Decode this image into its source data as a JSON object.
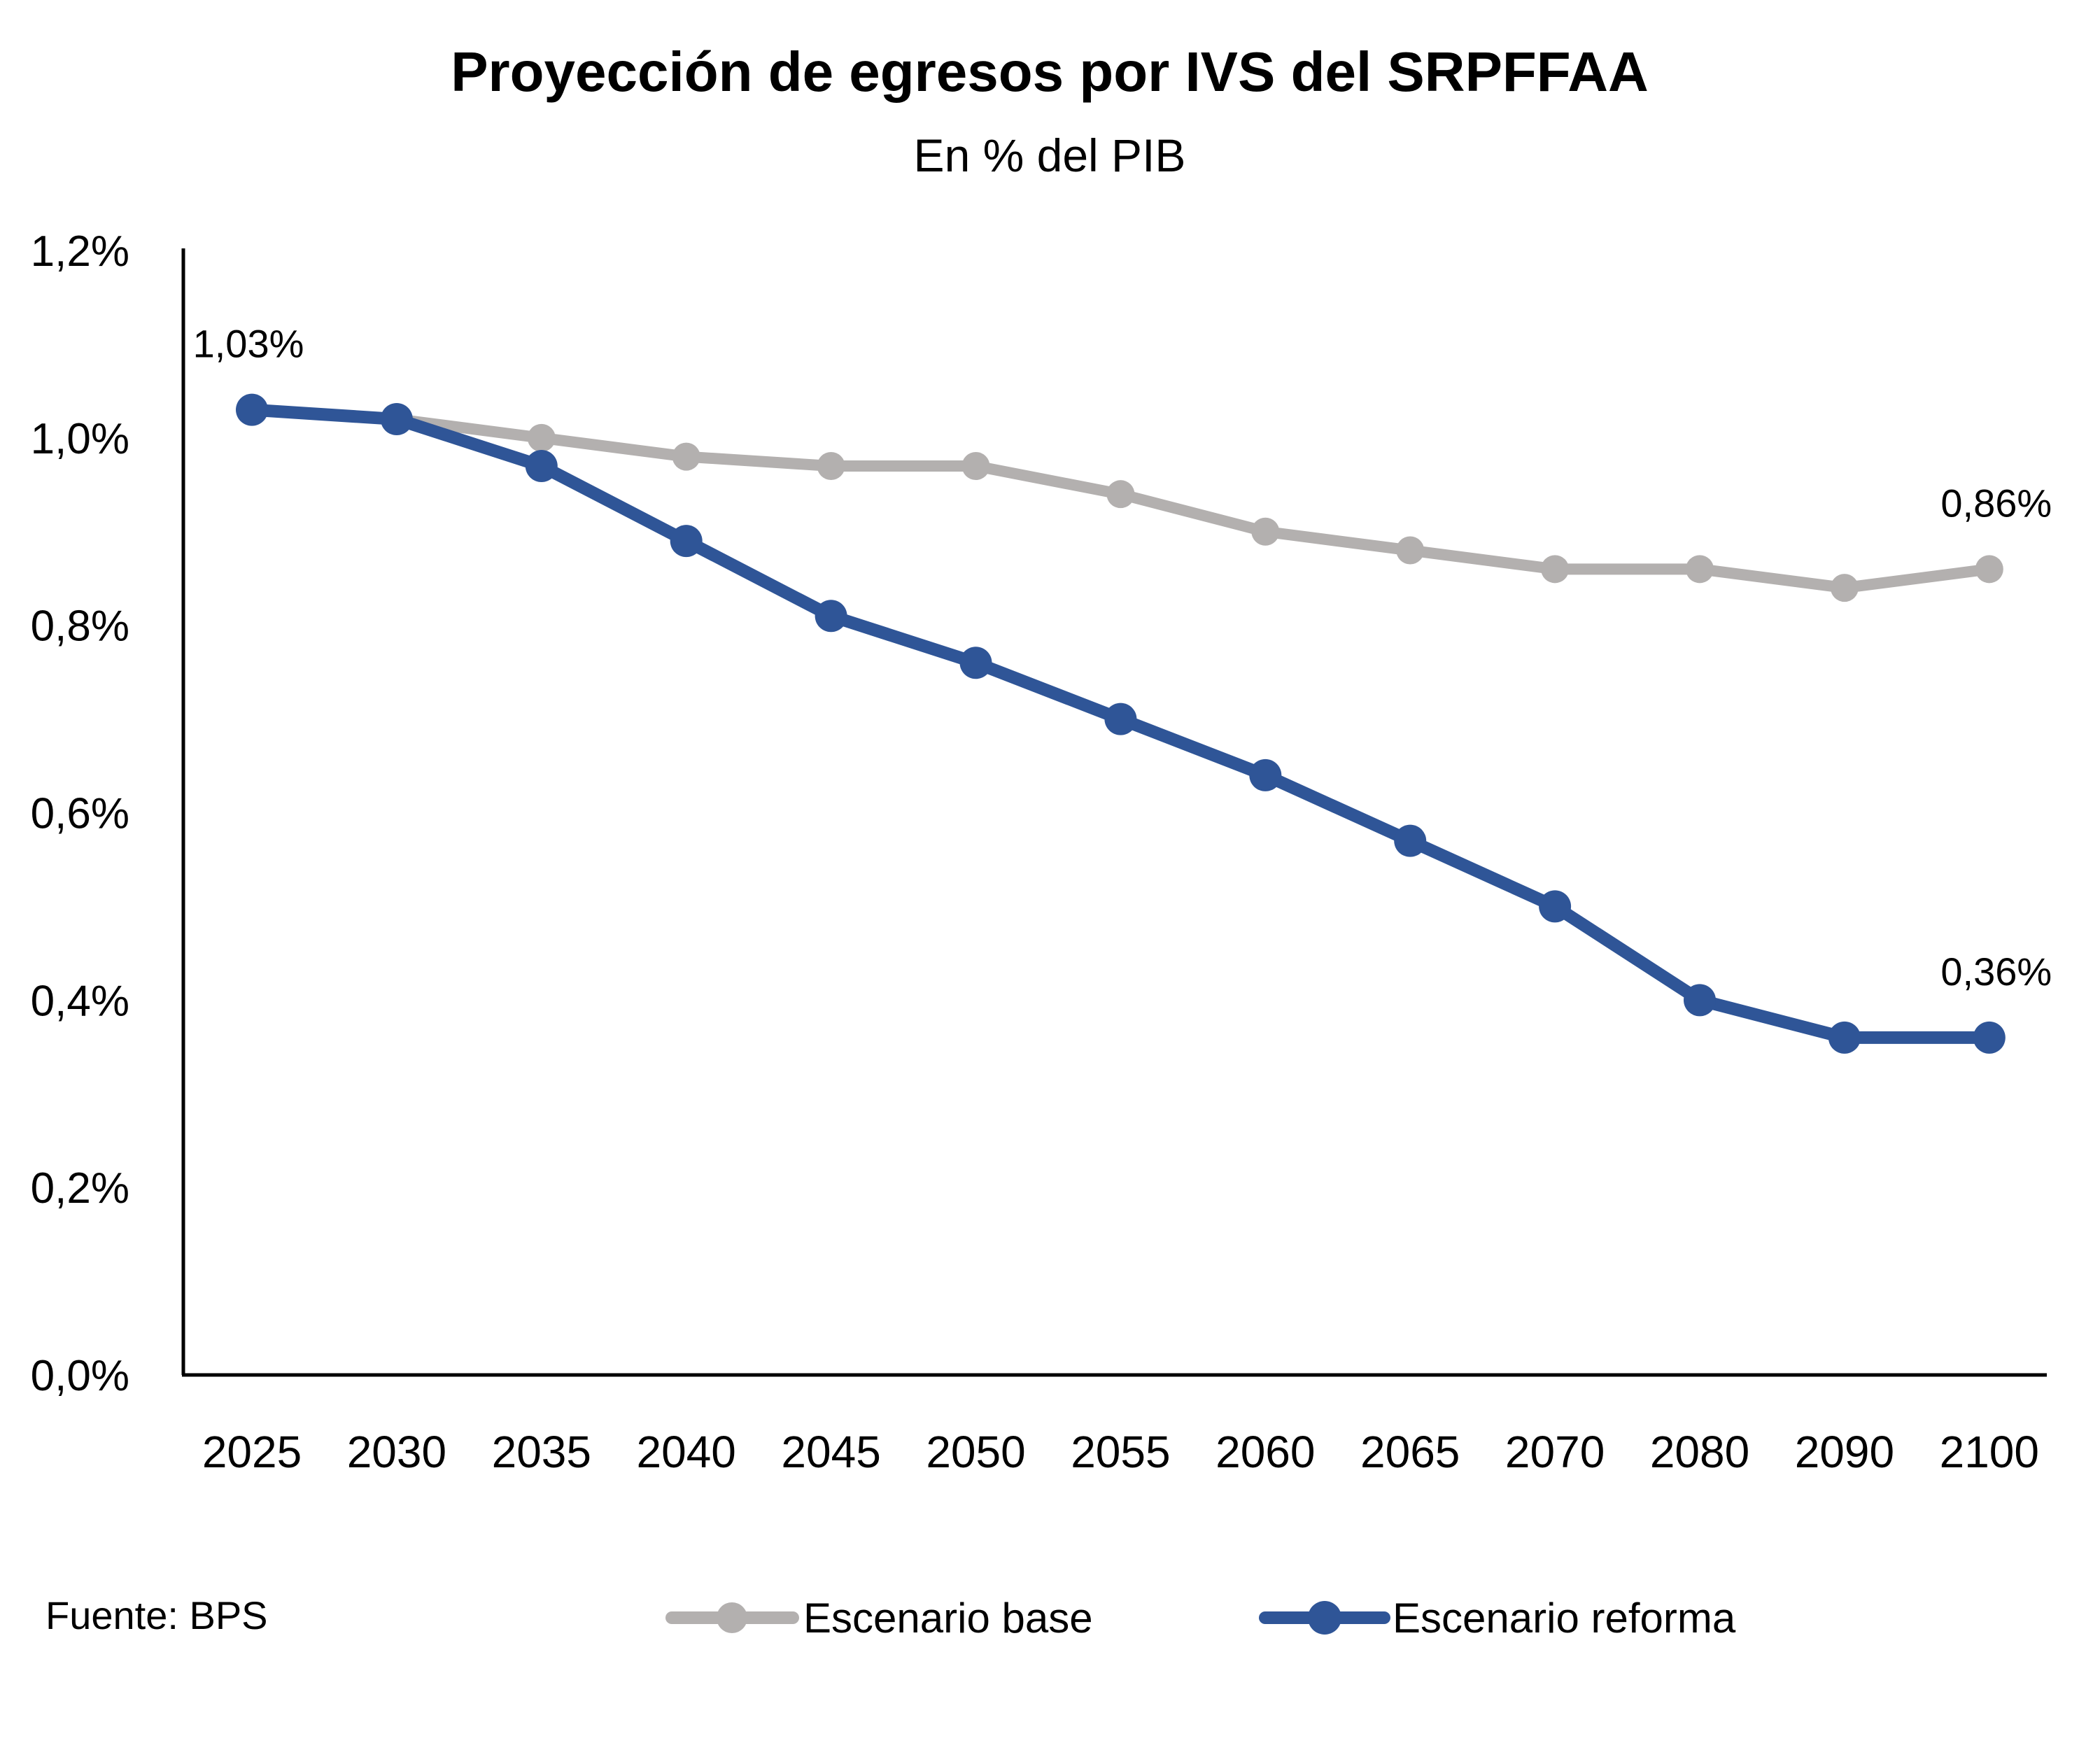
{
  "chart_data": {
    "type": "line",
    "title": "Proyección de egresos por IVS del SRPFFAA",
    "subtitle": "En % del PIB",
    "xlabel": "",
    "ylabel": "",
    "categories": [
      "2025",
      "2030",
      "2035",
      "2040",
      "2045",
      "2050",
      "2055",
      "2060",
      "2065",
      "2070",
      "2080",
      "2090",
      "2100"
    ],
    "ylim": [
      0,
      1.2
    ],
    "yticks": [
      0,
      0.2,
      0.4,
      0.6,
      0.8,
      1.0,
      1.2
    ],
    "ytick_labels": [
      "0,0%",
      "0,2%",
      "0,4%",
      "0,6%",
      "0,8%",
      "1,0%",
      "1,2%"
    ],
    "grid": false,
    "legend_position": "bottom",
    "series": [
      {
        "name": "Escenario base",
        "color": "#B3B0AF",
        "values": [
          1.03,
          1.02,
          1.0,
          0.98,
          0.97,
          0.97,
          0.94,
          0.9,
          0.88,
          0.86,
          0.86,
          0.84,
          0.86
        ]
      },
      {
        "name": "Escenario reforma",
        "color": "#2F5597",
        "values": [
          1.03,
          1.02,
          0.97,
          0.89,
          0.81,
          0.76,
          0.7,
          0.64,
          0.57,
          0.5,
          0.4,
          0.36,
          0.36
        ]
      }
    ],
    "annotations": [
      {
        "series": 1,
        "index": 0,
        "text": "1,03%"
      },
      {
        "series": 0,
        "index": 12,
        "text": "0,86%"
      },
      {
        "series": 1,
        "index": 12,
        "text": "0,36%"
      }
    ],
    "source": "Fuente: BPS"
  }
}
